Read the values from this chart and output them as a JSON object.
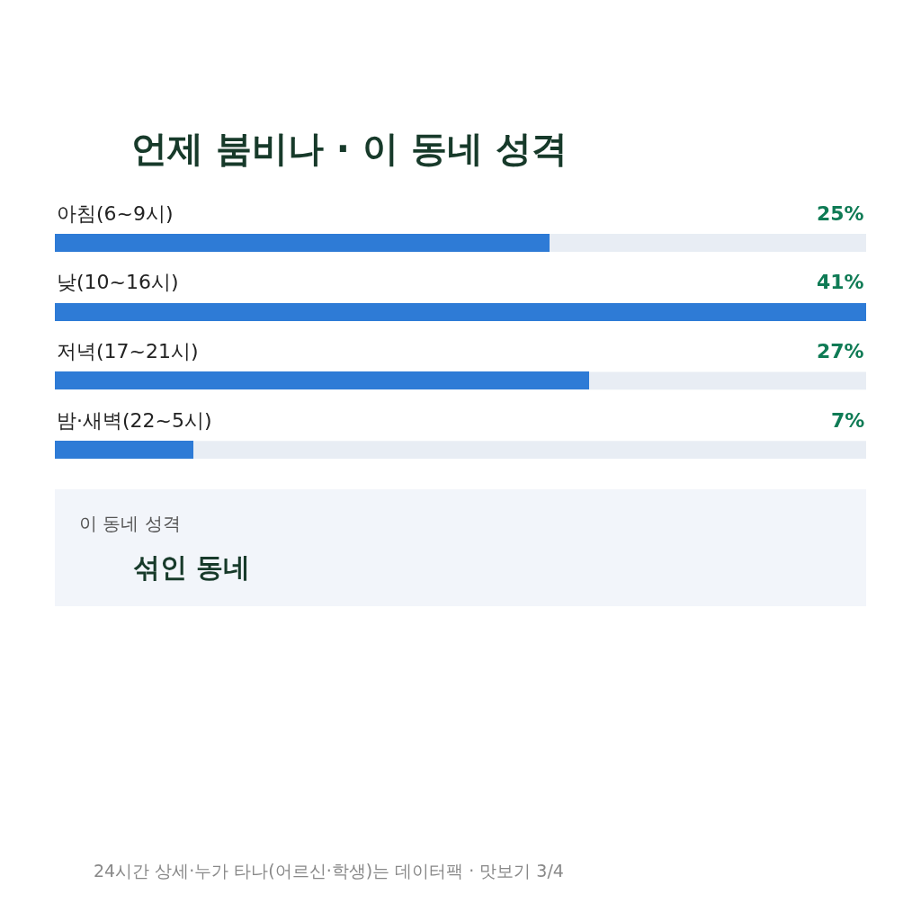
{
  "chart_data": {
    "type": "bar",
    "orientation": "horizontal",
    "title": "언제 붐비나 · 이 동네 성격",
    "categories": [
      "아침(6~9시)",
      "낮(10~16시)",
      "저녁(17~21시)",
      "밤·새벽(22~5시)"
    ],
    "values": [
      25,
      41,
      27,
      7
    ],
    "value_labels": [
      "25%",
      "41%",
      "27%",
      "7%"
    ],
    "color": "#2e7bd6",
    "annotations": [
      "이 동네 성격",
      "섞인 동네",
      "24시간 상세·누가 타나(어르신·학생)는 데이터팩 · 맛보기 3/4"
    ]
  }
}
